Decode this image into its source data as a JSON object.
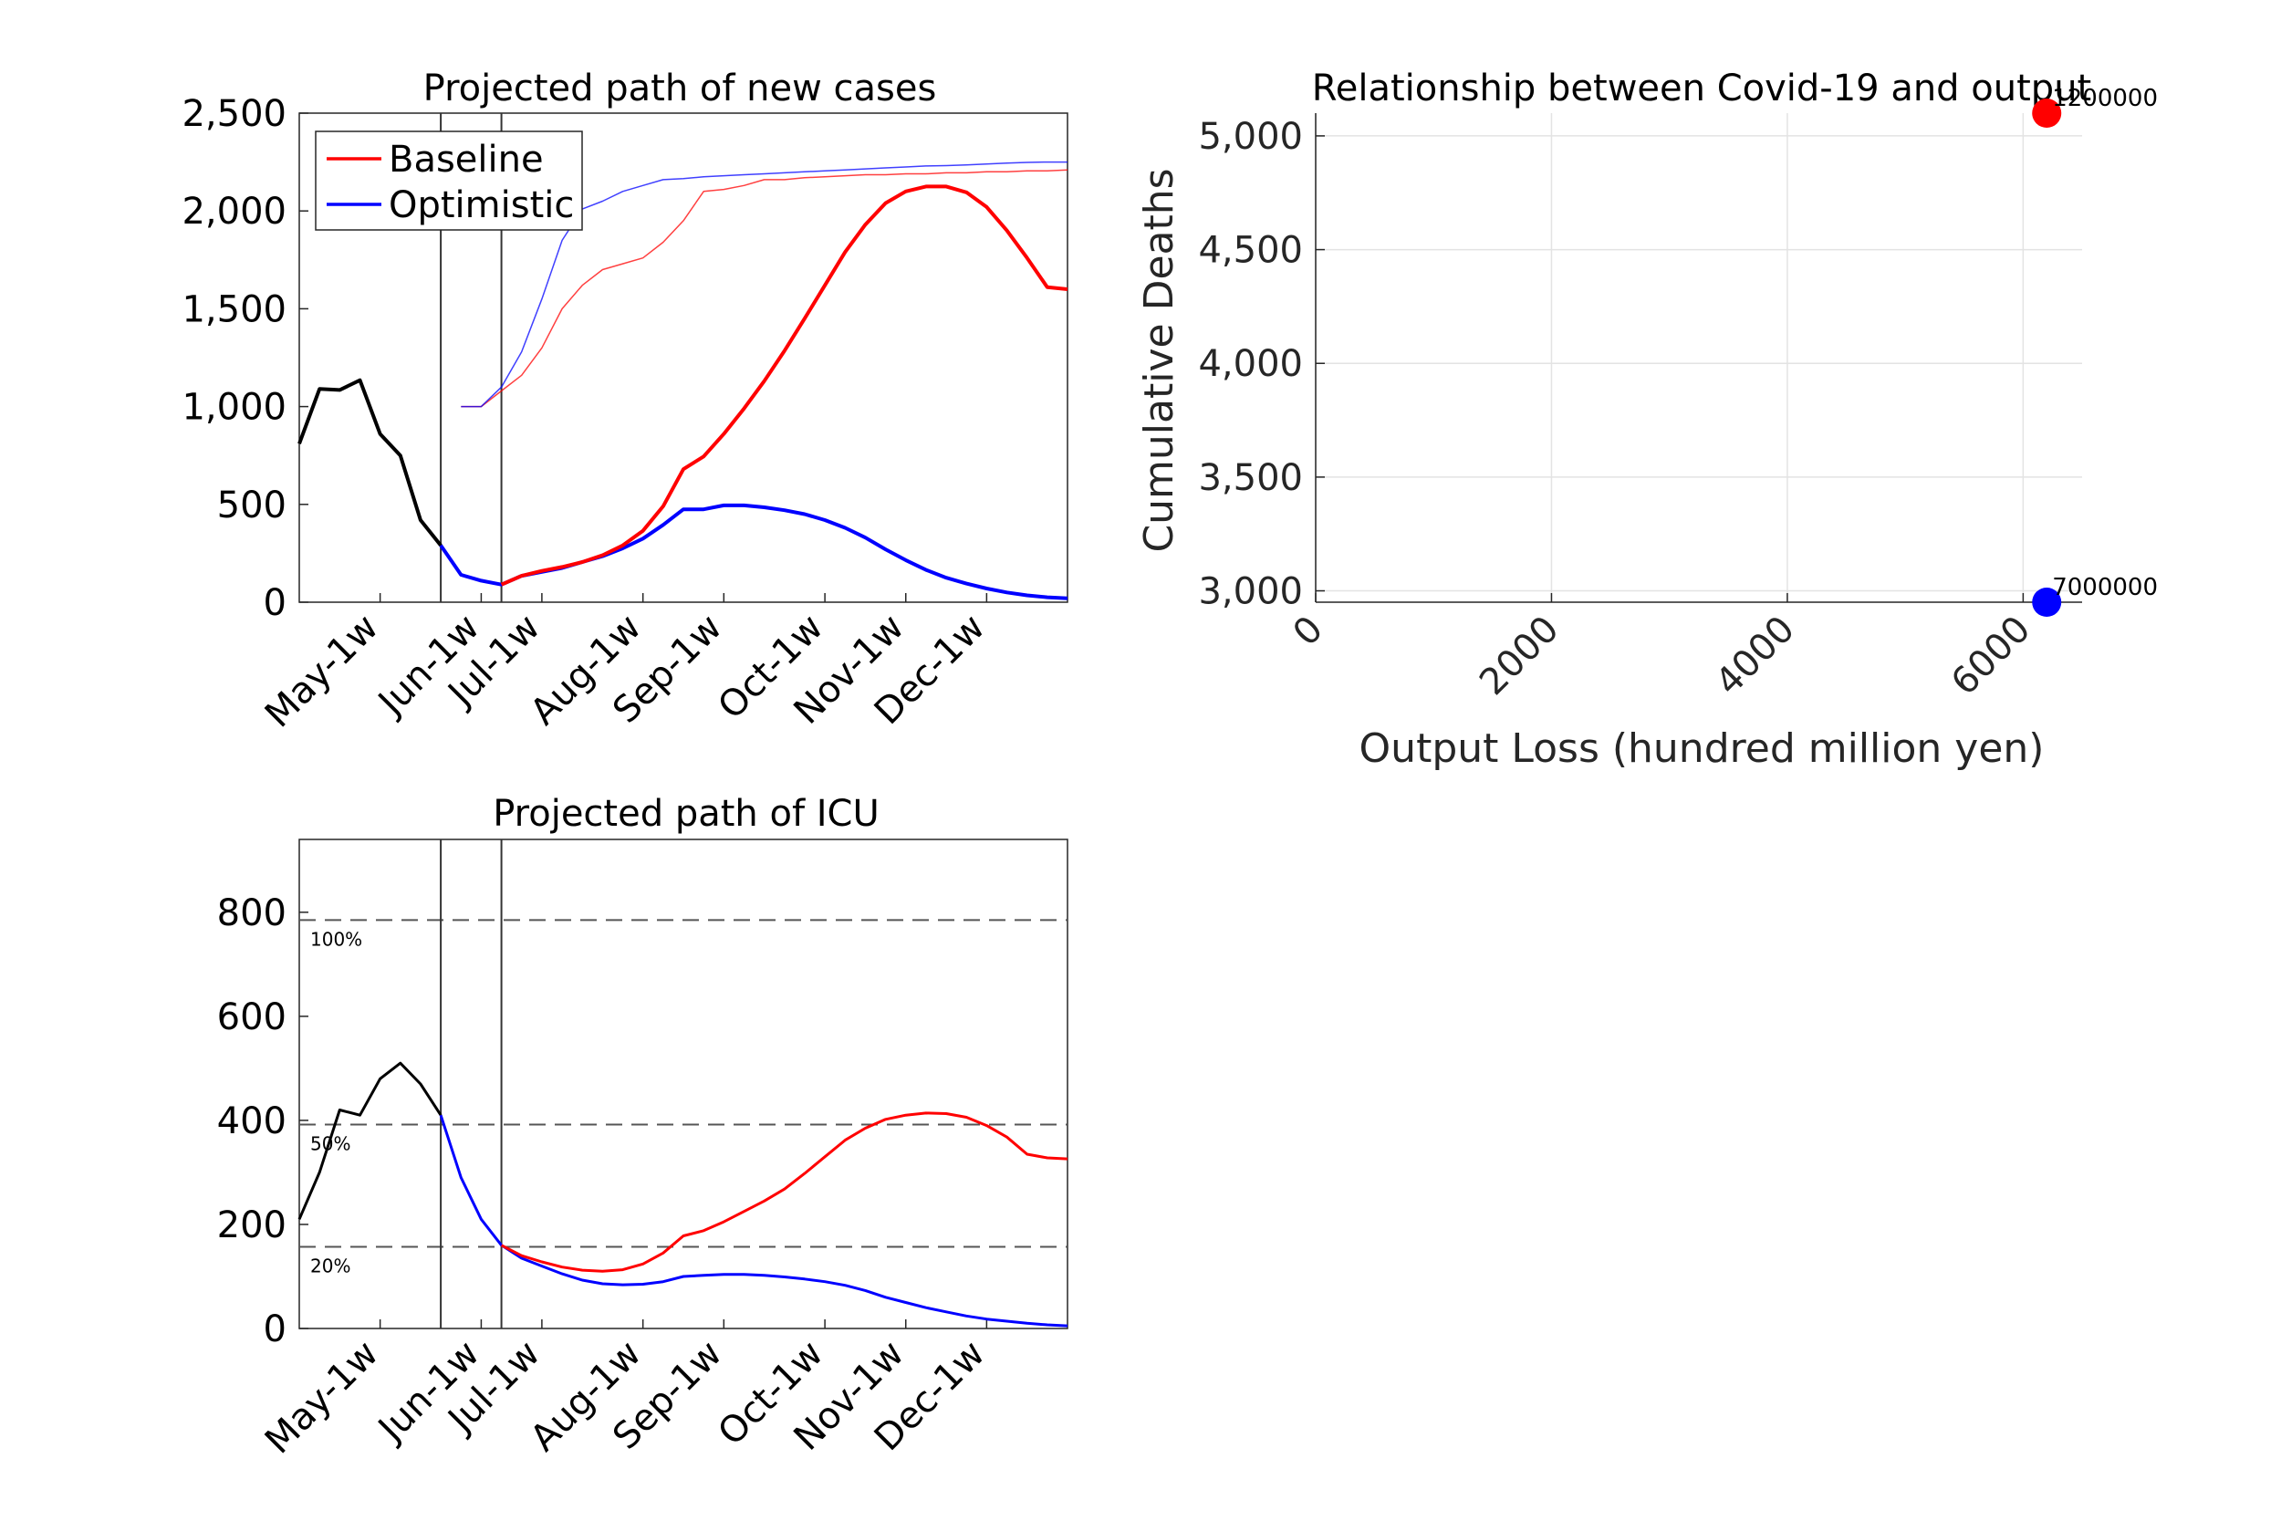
{
  "chart_data": [
    {
      "type": "line",
      "title": "Projected path of new cases",
      "xlabel": "",
      "ylabel": "",
      "ylim": [
        0,
        2500
      ],
      "yticks": [
        "0",
        "500",
        "1,000",
        "1,500",
        "2,000",
        "2,500"
      ],
      "xticks": [
        "May-1w",
        "Jun-1w",
        "Jul-1w",
        "Aug-1w",
        "Sep-1w",
        "Oct-1w",
        "Nov-1w",
        "Dec-1w"
      ],
      "week_range": [
        1,
        39
      ],
      "xtick_weeks": [
        5,
        10,
        13,
        18,
        22,
        27,
        31,
        35
      ],
      "vlines_weeks": [
        8,
        11
      ],
      "legend": {
        "position": "top-left",
        "entries": [
          "Baseline",
          "Optimistic"
        ]
      },
      "colors": {
        "baseline": "#ff0000",
        "optimistic": "#0000ff",
        "history": "#000000"
      },
      "series": [
        {
          "name": "",
          "role": "history",
          "color": "#000000",
          "points": [
            [
              1,
              810
            ],
            [
              2,
              1090
            ],
            [
              3,
              1085
            ],
            [
              4,
              1135
            ],
            [
              5,
              860
            ],
            [
              6,
              750
            ],
            [
              7,
              420
            ],
            [
              8,
              290
            ]
          ]
        },
        {
          "name": "",
          "role": "optimistic-bold",
          "color": "#0000ff",
          "points": [
            [
              8,
              290
            ],
            [
              9,
              140
            ],
            [
              10,
              110
            ],
            [
              11,
              90
            ],
            [
              12,
              135
            ],
            [
              13,
              155
            ],
            [
              14,
              175
            ],
            [
              15,
              205
            ],
            [
              16,
              235
            ],
            [
              17,
              275
            ],
            [
              18,
              325
            ],
            [
              19,
              395
            ],
            [
              20,
              475
            ],
            [
              21,
              475
            ],
            [
              22,
              495
            ],
            [
              23,
              495
            ],
            [
              24,
              485
            ],
            [
              25,
              470
            ],
            [
              26,
              450
            ],
            [
              27,
              420
            ],
            [
              28,
              380
            ],
            [
              29,
              330
            ],
            [
              30,
              270
            ],
            [
              31,
              215
            ],
            [
              32,
              165
            ],
            [
              33,
              125
            ],
            [
              34,
              95
            ],
            [
              35,
              70
            ],
            [
              36,
              50
            ],
            [
              37,
              35
            ],
            [
              38,
              25
            ],
            [
              39,
              20
            ]
          ]
        },
        {
          "name": "",
          "role": "baseline-bold",
          "color": "#ff0000",
          "points": [
            [
              11,
              90
            ],
            [
              12,
              135
            ],
            [
              13,
              160
            ],
            [
              14,
              180
            ],
            [
              15,
              205
            ],
            [
              16,
              240
            ],
            [
              17,
              290
            ],
            [
              18,
              365
            ],
            [
              19,
              490
            ],
            [
              20,
              680
            ],
            [
              21,
              745
            ],
            [
              22,
              860
            ],
            [
              23,
              990
            ],
            [
              24,
              1130
            ],
            [
              25,
              1285
            ],
            [
              26,
              1450
            ],
            [
              27,
              1620
            ],
            [
              28,
              1790
            ],
            [
              29,
              1930
            ],
            [
              30,
              2040
            ],
            [
              31,
              2100
            ],
            [
              32,
              2125
            ],
            [
              33,
              2125
            ],
            [
              34,
              2095
            ],
            [
              35,
              2020
            ],
            [
              36,
              1900
            ],
            [
              37,
              1760
            ],
            [
              38,
              1610
            ],
            [
              39,
              1600
            ]
          ]
        },
        {
          "name": "",
          "role": "baseline-thin",
          "color": "#ff0000",
          "points": [
            [
              9,
              1000
            ],
            [
              10,
              1000
            ],
            [
              11,
              1080
            ],
            [
              12,
              1160
            ],
            [
              13,
              1300
            ],
            [
              14,
              1500
            ],
            [
              15,
              1620
            ],
            [
              16,
              1700
            ],
            [
              17,
              1730
            ],
            [
              18,
              1760
            ],
            [
              19,
              1840
            ],
            [
              20,
              1950
            ],
            [
              21,
              2100
            ],
            [
              22,
              2110
            ],
            [
              23,
              2130
            ],
            [
              24,
              2160
            ],
            [
              25,
              2160
            ],
            [
              26,
              2170
            ],
            [
              27,
              2175
            ],
            [
              28,
              2180
            ],
            [
              29,
              2185
            ],
            [
              30,
              2185
            ],
            [
              31,
              2190
            ],
            [
              32,
              2190
            ],
            [
              33,
              2195
            ],
            [
              34,
              2195
            ],
            [
              35,
              2200
            ],
            [
              36,
              2200
            ],
            [
              37,
              2205
            ],
            [
              38,
              2205
            ],
            [
              39,
              2210
            ]
          ]
        },
        {
          "name": "",
          "role": "optimistic-thin",
          "color": "#0000ff",
          "points": [
            [
              9,
              1000
            ],
            [
              10,
              1000
            ],
            [
              11,
              1100
            ],
            [
              12,
              1280
            ],
            [
              13,
              1550
            ],
            [
              14,
              1850
            ],
            [
              15,
              2010
            ],
            [
              16,
              2050
            ],
            [
              17,
              2100
            ],
            [
              18,
              2130
            ],
            [
              19,
              2160
            ],
            [
              20,
              2165
            ],
            [
              21,
              2175
            ],
            [
              22,
              2180
            ],
            [
              23,
              2185
            ],
            [
              24,
              2190
            ],
            [
              25,
              2195
            ],
            [
              26,
              2200
            ],
            [
              27,
              2205
            ],
            [
              28,
              2210
            ],
            [
              29,
              2215
            ],
            [
              30,
              2220
            ],
            [
              31,
              2225
            ],
            [
              32,
              2230
            ],
            [
              33,
              2232
            ],
            [
              34,
              2235
            ],
            [
              35,
              2240
            ],
            [
              36,
              2245
            ],
            [
              37,
              2248
            ],
            [
              38,
              2250
            ],
            [
              39,
              2250
            ]
          ]
        }
      ]
    },
    {
      "type": "scatter",
      "title": "Relationship between Covid-19 and output",
      "xlabel": "Output Loss (hundred million yen)",
      "ylabel": "Cumulative Deaths",
      "xlim": [
        0,
        6500
      ],
      "ylim": [
        2950,
        5100
      ],
      "xticks": [
        "0",
        "2000",
        "4000",
        "6000"
      ],
      "yticks": [
        "3,000",
        "3,500",
        "4,000",
        "4,500",
        "5,000"
      ],
      "grid": true,
      "points": [
        {
          "x": 6200,
          "y": 5100,
          "label": "1200000",
          "color": "#ff0000"
        },
        {
          "x": 6200,
          "y": 2950,
          "label": "7000000",
          "color": "#0000ff"
        }
      ]
    },
    {
      "type": "line",
      "title": "Projected path of ICU",
      "xlabel": "",
      "ylabel": "",
      "ylim": [
        0,
        940
      ],
      "yticks": [
        "0",
        "200",
        "400",
        "600",
        "800"
      ],
      "xticks": [
        "May-1w",
        "Jun-1w",
        "Jul-1w",
        "Aug-1w",
        "Sep-1w",
        "Oct-1w",
        "Nov-1w",
        "Dec-1w"
      ],
      "week_range": [
        1,
        39
      ],
      "xtick_weeks": [
        5,
        10,
        13,
        18,
        22,
        27,
        31,
        35
      ],
      "vlines_weeks": [
        8,
        11
      ],
      "reference_lines": [
        {
          "value": 785,
          "label": "100%"
        },
        {
          "value": 392,
          "label": "50%"
        },
        {
          "value": 157,
          "label": "20%"
        }
      ],
      "series": [
        {
          "name": "",
          "role": "history",
          "color": "#000000",
          "points": [
            [
              1,
              210
            ],
            [
              2,
              300
            ],
            [
              3,
              420
            ],
            [
              4,
              410
            ],
            [
              5,
              480
            ],
            [
              6,
              510
            ],
            [
              7,
              470
            ],
            [
              8,
              410
            ]
          ]
        },
        {
          "name": "",
          "role": "optimistic",
          "color": "#0000ff",
          "points": [
            [
              8,
              410
            ],
            [
              9,
              290
            ],
            [
              10,
              210
            ],
            [
              11,
              160
            ],
            [
              12,
              135
            ],
            [
              13,
              120
            ],
            [
              14,
              105
            ],
            [
              15,
              93
            ],
            [
              16,
              86
            ],
            [
              17,
              84
            ],
            [
              18,
              85
            ],
            [
              19,
              90
            ],
            [
              20,
              100
            ],
            [
              21,
              102
            ],
            [
              22,
              104
            ],
            [
              23,
              104
            ],
            [
              24,
              102
            ],
            [
              25,
              99
            ],
            [
              26,
              95
            ],
            [
              27,
              90
            ],
            [
              28,
              83
            ],
            [
              29,
              73
            ],
            [
              30,
              60
            ],
            [
              31,
              50
            ],
            [
              32,
              40
            ],
            [
              33,
              32
            ],
            [
              34,
              24
            ],
            [
              35,
              18
            ],
            [
              36,
              14
            ],
            [
              37,
              10
            ],
            [
              38,
              7
            ],
            [
              39,
              5
            ]
          ]
        },
        {
          "name": "",
          "role": "baseline",
          "color": "#ff0000",
          "points": [
            [
              11,
              160
            ],
            [
              12,
              140
            ],
            [
              13,
              128
            ],
            [
              14,
              118
            ],
            [
              15,
              112
            ],
            [
              16,
              110
            ],
            [
              17,
              113
            ],
            [
              18,
              124
            ],
            [
              19,
              145
            ],
            [
              20,
              178
            ],
            [
              21,
              188
            ],
            [
              22,
              205
            ],
            [
              23,
              225
            ],
            [
              24,
              245
            ],
            [
              25,
              268
            ],
            [
              26,
              298
            ],
            [
              27,
              330
            ],
            [
              28,
              362
            ],
            [
              29,
              385
            ],
            [
              30,
              402
            ],
            [
              31,
              410
            ],
            [
              32,
              414
            ],
            [
              33,
              413
            ],
            [
              34,
              406
            ],
            [
              35,
              390
            ],
            [
              36,
              368
            ],
            [
              37,
              335
            ],
            [
              38,
              328
            ],
            [
              39,
              326
            ]
          ]
        }
      ]
    }
  ]
}
